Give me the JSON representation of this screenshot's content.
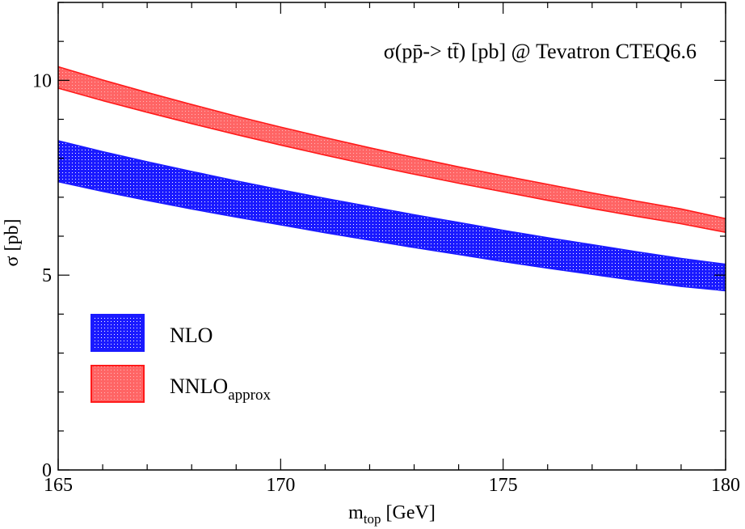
{
  "chart_data": {
    "type": "area",
    "annotation": "σ(pp̄-> tt̄) [pb] @ Tevatron CTEQ6.6",
    "xlabel": {
      "main": "m",
      "sub": "top",
      "suffix": " [GeV]"
    },
    "ylabel": "σ [pb]",
    "xlim": [
      165,
      180
    ],
    "ylim": [
      0,
      12
    ],
    "xticks": [
      165,
      170,
      175,
      180
    ],
    "xtick_labels": [
      "165",
      "170",
      "175",
      "180"
    ],
    "yticks": [
      0,
      5,
      10
    ],
    "ytick_labels": [
      "0",
      "5",
      "10"
    ],
    "grid": false,
    "legend_position": "lower-left",
    "x": [
      165,
      166,
      167,
      168,
      169,
      170,
      171,
      172,
      173,
      174,
      175,
      176,
      177,
      178,
      179,
      180
    ],
    "series": [
      {
        "name": "NLO",
        "name_main": "NLO",
        "name_sub": "",
        "color": "#1a1aff",
        "fill": "#2b3cf0",
        "lower": [
          7.4,
          7.15,
          6.92,
          6.7,
          6.49,
          6.29,
          6.09,
          5.9,
          5.71,
          5.53,
          5.35,
          5.18,
          5.02,
          4.86,
          4.71,
          4.6
        ],
        "upper": [
          8.45,
          8.17,
          7.91,
          7.66,
          7.42,
          7.19,
          6.97,
          6.76,
          6.55,
          6.35,
          6.15,
          5.96,
          5.78,
          5.6,
          5.43,
          5.28
        ]
      },
      {
        "name": "NNLOapprox",
        "name_main": "NNLO",
        "name_sub": "approx",
        "color": "#ff1a1a",
        "fill": "#f04040",
        "lower": [
          9.8,
          9.48,
          9.18,
          8.89,
          8.61,
          8.34,
          8.08,
          7.83,
          7.59,
          7.36,
          7.14,
          6.92,
          6.71,
          6.51,
          6.32,
          6.1
        ],
        "upper": [
          10.35,
          10.01,
          9.69,
          9.38,
          9.08,
          8.8,
          8.53,
          8.27,
          8.02,
          7.78,
          7.55,
          7.33,
          7.11,
          6.9,
          6.7,
          6.45
        ]
      }
    ]
  }
}
